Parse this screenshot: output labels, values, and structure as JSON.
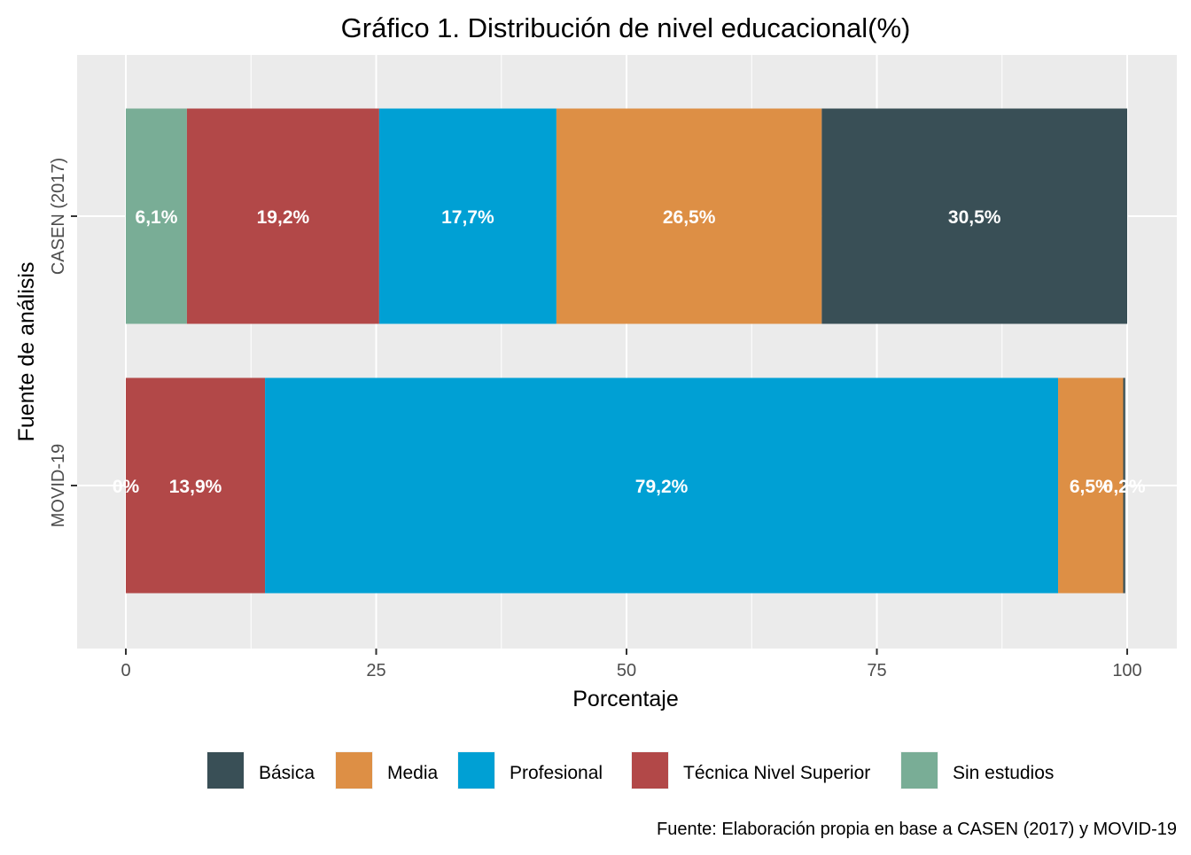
{
  "chart_data": {
    "type": "bar",
    "orientation": "horizontal",
    "stacked": true,
    "title": "Gráfico 1. Distribución de nivel educacional(%)",
    "xlabel": "Porcentaje",
    "ylabel": "Fuente de análisis",
    "xlim": [
      0,
      100
    ],
    "xticks": [
      "0",
      "25",
      "50",
      "75",
      "100"
    ],
    "grid": true,
    "legend_position": "bottom",
    "caption": "Fuente: Elaboración propia en base a CASEN (2017) y MOVID-19",
    "categories": [
      "CASEN (2017)",
      "MOVID-19"
    ],
    "series": [
      {
        "name": "Sin estudios",
        "color": "#79AD96",
        "values": [
          6.1,
          0
        ],
        "labels": [
          "6,1%",
          "0%"
        ]
      },
      {
        "name": "Técnica Nivel Superior",
        "color": "#B24848",
        "values": [
          19.2,
          13.9
        ],
        "labels": [
          "19,2%",
          "13,9%"
        ]
      },
      {
        "name": "Profesional",
        "color": "#00A0D4",
        "values": [
          17.7,
          79.2
        ],
        "labels": [
          "17,7%",
          "79,2%"
        ]
      },
      {
        "name": "Media",
        "color": "#DD8F45",
        "values": [
          26.5,
          6.5
        ],
        "labels": [
          "26,5%",
          "6,5%"
        ]
      },
      {
        "name": "Básica",
        "color": "#394F56",
        "values": [
          30.5,
          0.2
        ],
        "labels": [
          "30,5%",
          "0,2%"
        ]
      }
    ],
    "legend_order": [
      "Básica",
      "Media",
      "Profesional",
      "Técnica Nivel Superior",
      "Sin estudios"
    ]
  }
}
